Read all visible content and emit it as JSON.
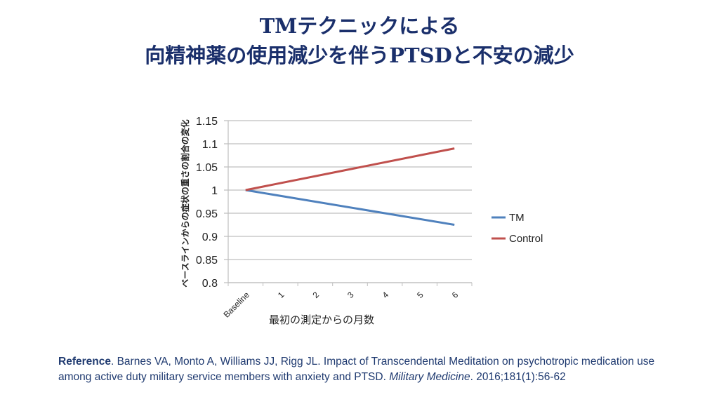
{
  "title": {
    "line1": "TMテクニックによる",
    "line2": "向精神薬の使用減少を伴うPTSDと不安の減少"
  },
  "chart_data": {
    "type": "line",
    "title": "",
    "xlabel": "最初の測定からの月数",
    "ylabel": "ベースラインからの症状の重さの割合の変化",
    "categories": [
      "Baseline",
      "1",
      "2",
      "3",
      "4",
      "5",
      "6"
    ],
    "ylim": [
      0.8,
      1.15
    ],
    "yticks": [
      "0.8",
      "0.85",
      "0.9",
      "0.95",
      "1",
      "1.05",
      "1.1",
      "1.15"
    ],
    "grid": true,
    "legend_position": "right",
    "series": [
      {
        "name": "TM",
        "color": "#4f81bd",
        "values": [
          1.0,
          null,
          null,
          null,
          null,
          null,
          0.925
        ]
      },
      {
        "name": "Control",
        "color": "#c0504d",
        "values": [
          1.0,
          null,
          null,
          null,
          null,
          null,
          1.09
        ]
      }
    ]
  },
  "reference": {
    "label": "Reference",
    "text": ". Barnes VA, Monto A, Williams JJ, Rigg JL. Impact of Transcendental Meditation on psychotropic medication use among active duty military service members with anxiety and PTSD. ",
    "journal": "Military Medicine",
    "citation": ". 2016;181(1):56-62"
  }
}
